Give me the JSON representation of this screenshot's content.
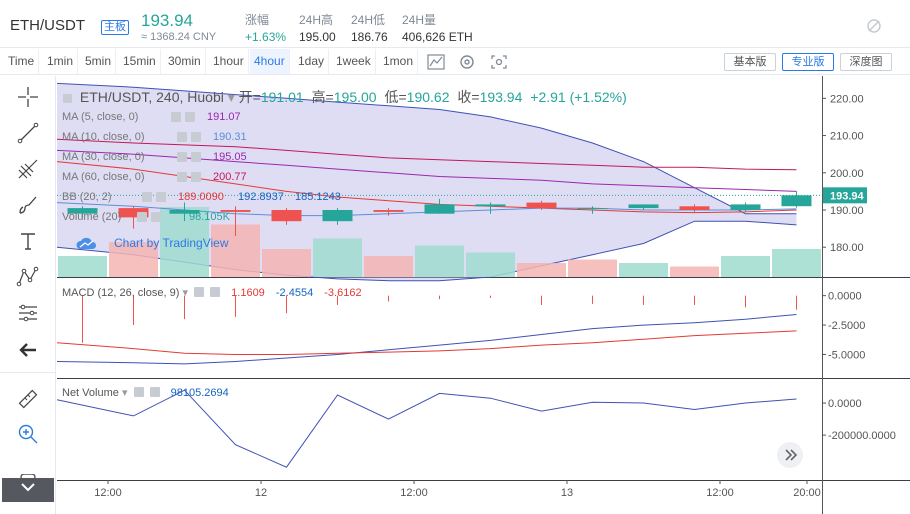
{
  "header": {
    "symbol": "ETH/USDT",
    "badge": "主板",
    "last_price": "193.94",
    "cny_price": "≈ 1368.24 CNY",
    "stats": [
      {
        "label": "涨幅",
        "value": "+1.63%",
        "up": true
      },
      {
        "label": "24H高",
        "value": "195.00",
        "up": false
      },
      {
        "label": "24H低",
        "value": "186.76",
        "up": false
      },
      {
        "label": "24H量",
        "value": "406,626 ETH",
        "up": false
      }
    ]
  },
  "toolbar": {
    "timeframes": [
      "Time",
      "1min",
      "5min",
      "15min",
      "30min",
      "1hour",
      "4hour",
      "1day",
      "1week",
      "1mon"
    ],
    "active_timeframe": "4hour",
    "view_buttons": [
      "基本版",
      "专业版",
      "深度图"
    ],
    "active_view": "专业版"
  },
  "left_tools": [
    "crosshair-icon",
    "trend-line-icon",
    "pitchfork-icon",
    "brush-icon",
    "text-icon",
    "pattern-icon",
    "fib-icon",
    "back-arrow-icon",
    "ruler-icon",
    "zoom-in-icon",
    "lock-icon"
  ],
  "main_legend": {
    "title": "ETH/USDT, 240, Huobi",
    "o_label": "开=",
    "o": "191.01",
    "h_label": "高=",
    "h": "195.00",
    "l_label": "低=",
    "l": "190.62",
    "c_label": "收=",
    "c": "193.94",
    "change": "+2.91 (+1.52%)"
  },
  "indicators": [
    {
      "label": "MA (5, close, 0)",
      "value": "191.07",
      "color": "#9c27b0"
    },
    {
      "label": "MA (10, close, 0)",
      "value": "190.31",
      "color": "#5b8fd6"
    },
    {
      "label": "MA (30, close, 0)",
      "value": "195.05",
      "color": "#9c27b0"
    },
    {
      "label": "MA (60, close, 0)",
      "value": "200.77",
      "color": "#c2185b"
    }
  ],
  "bb": {
    "label": "BB (20, 2)",
    "upper": "189.0090",
    "mid": "192.8937",
    "lower": "185.1243"
  },
  "volume": {
    "label": "Volume (20)",
    "value": "98.105K"
  },
  "watermark": "Chart by TradingView",
  "macd": {
    "label": "MACD (12, 26, close, 9)",
    "v1": "1.1609",
    "v2": "-2.4554",
    "v3": "-3.6162"
  },
  "net_volume": {
    "label": "Net Volume",
    "value": "98105.2694"
  },
  "price_axis": [
    "220.00",
    "210.00",
    "200.00",
    "190.00",
    "180.00"
  ],
  "last_price_tag": "193.94",
  "macd_axis": [
    "0.0000",
    "-2.5000",
    "-5.0000"
  ],
  "nv_axis": [
    "0.0000",
    "-200000.0000"
  ],
  "time_axis": [
    "12:00",
    "12",
    "12:00",
    "13",
    "12:00",
    "20:00"
  ],
  "colors": {
    "up": "#26a69a",
    "down": "#ef5350",
    "accent": "#2c7be5"
  },
  "chart_data": {
    "type": "candlestick",
    "candles": [
      {
        "o": 189,
        "h": 191,
        "l": 188,
        "c": 190.5
      },
      {
        "o": 190.5,
        "h": 191,
        "l": 185,
        "c": 188
      },
      {
        "o": 189,
        "h": 192,
        "l": 187,
        "c": 190
      },
      {
        "o": 190,
        "h": 191,
        "l": 183,
        "c": 189.5
      },
      {
        "o": 190,
        "h": 190.5,
        "l": 186,
        "c": 187
      },
      {
        "o": 187,
        "h": 190.5,
        "l": 186,
        "c": 190
      },
      {
        "o": 190,
        "h": 190.5,
        "l": 188.5,
        "c": 189.5
      },
      {
        "o": 189,
        "h": 193,
        "l": 189,
        "c": 191.5
      },
      {
        "o": 191,
        "h": 192,
        "l": 189,
        "c": 191.5
      },
      {
        "o": 192,
        "h": 192.5,
        "l": 190,
        "c": 190.5
      },
      {
        "o": 190.5,
        "h": 191,
        "l": 189,
        "c": 190.5
      },
      {
        "o": 190.5,
        "h": 191.5,
        "l": 190,
        "c": 191.5
      },
      {
        "o": 191,
        "h": 191.5,
        "l": 189.5,
        "c": 190
      },
      {
        "o": 190,
        "h": 192,
        "l": 189.5,
        "c": 191.5
      },
      {
        "o": 191,
        "h": 195,
        "l": 190.6,
        "c": 193.94
      }
    ],
    "price_ylim": [
      172,
      226
    ],
    "bb_upper": [
      224,
      223,
      222,
      221,
      220,
      219,
      218,
      217,
      215,
      212,
      208,
      203,
      196,
      189,
      189
    ],
    "bb_lower": [
      180,
      178,
      176,
      174,
      172.5,
      171.5,
      171,
      171,
      172,
      175,
      178,
      181,
      187,
      187,
      186
    ],
    "ma60": [
      209,
      208,
      207.5,
      207,
      206,
      205,
      204,
      203.5,
      203,
      202.5,
      202,
      201.5,
      201.5,
      201,
      200.8
    ],
    "ma30": [
      206,
      205,
      204,
      203,
      202,
      201,
      200,
      199,
      198.5,
      198,
      197,
      196.5,
      196,
      195.5,
      195
    ],
    "ma10": [
      192,
      191,
      190,
      189,
      188.5,
      188.5,
      189,
      189.5,
      190,
      190.5,
      190.5,
      190,
      190,
      190,
      190.3
    ],
    "ma5": [
      203,
      201,
      199,
      197,
      195,
      193.5,
      192.5,
      191.5,
      191,
      190.5,
      190,
      189.5,
      189.3,
      189.5,
      190
    ],
    "volume_values": [
      60,
      100,
      200,
      150,
      80,
      110,
      60,
      90,
      70,
      40,
      50,
      40,
      30,
      60,
      80
    ],
    "volume_up": [
      true,
      false,
      true,
      false,
      false,
      true,
      false,
      true,
      true,
      false,
      false,
      true,
      false,
      true,
      true
    ],
    "macd_hist": [
      -4,
      -2.5,
      -2,
      -1.8,
      -1.5,
      -0.8,
      -0.5,
      -0.3,
      -0.2,
      -0.8,
      -0.7,
      -0.8,
      -0.8,
      -1,
      -1.2
    ],
    "macd_line": [
      -5.6,
      -5.7,
      -5.8,
      -5.6,
      -5.3,
      -5.0,
      -4.6,
      -4.2,
      -3.8,
      -3.3,
      -2.8,
      -2.5,
      -2.3,
      -2.0,
      -1.6
    ],
    "signal_line": [
      -4.0,
      -4.5,
      -4.9,
      -5.0,
      -5.0,
      -4.9,
      -4.8,
      -4.7,
      -4.5,
      -4.2,
      -4.0,
      -3.7,
      -3.4,
      -3.2,
      -3.0
    ],
    "macd_ylim": [
      -7,
      1.5
    ],
    "net_volume_values": [
      20000,
      -80000,
      80000,
      -260000,
      -400000,
      50000,
      -100000,
      60000,
      30000,
      -50000,
      5000,
      0,
      -40000,
      0,
      25000
    ],
    "nv_ylim": [
      -480000,
      150000
    ]
  }
}
